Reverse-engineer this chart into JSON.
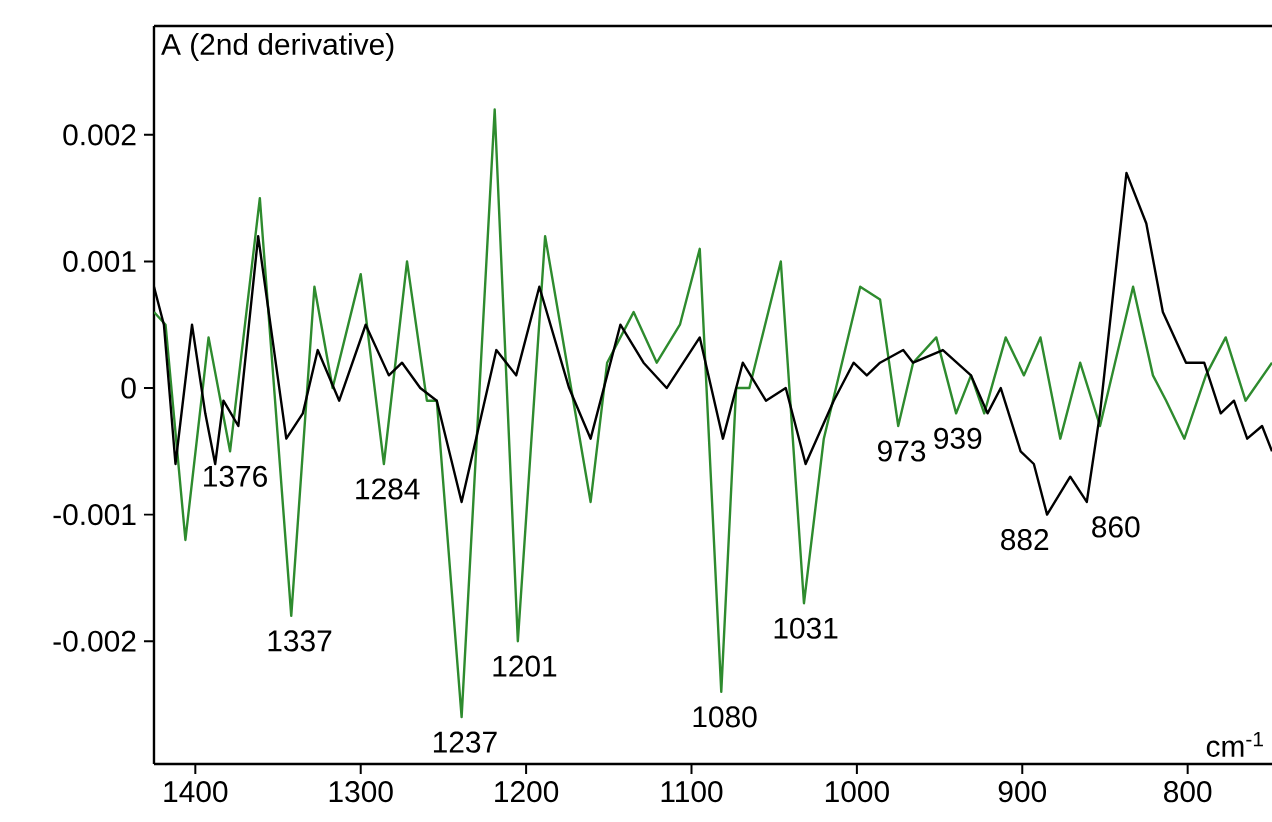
{
  "chart_data": {
    "type": "line",
    "title": "A (2nd derivative)",
    "xlabel": "cm$^{-1}$",
    "xlim": [
      1425,
      749
    ],
    "ylim": [
      -0.00297,
      0.00286
    ],
    "xticks": [
      1400,
      1300,
      1200,
      1100,
      1000,
      900,
      800
    ],
    "yticks": [
      0.002,
      0.001,
      0,
      -0.001,
      -0.002
    ],
    "grid": false,
    "marker": "none",
    "series": [
      {
        "color": "#2e8b2e",
        "x": [
          1425,
          1418,
          1406,
          1392,
          1379,
          1361,
          1342,
          1328,
          1317,
          1300,
          1286,
          1272,
          1260,
          1254,
          1239,
          1219,
          1205,
          1188.5,
          1161,
          1151,
          1135,
          1121,
          1107,
          1095,
          1082,
          1073,
          1065,
          1046,
          1032,
          1020,
          998,
          986,
          975,
          966,
          952,
          940,
          931,
          923,
          910,
          899,
          889,
          877,
          865,
          853,
          833,
          821,
          813,
          802,
          789,
          777,
          765,
          749
        ],
        "values": [
          0.0006,
          0.0005,
          -0.0012,
          0.0004,
          -0.0005,
          0.0015,
          -0.0018,
          0.0008,
          0,
          0.0009,
          -0.0006,
          0.001,
          -0.0001,
          -0.0001,
          -0.0026,
          0.0022,
          -0.002,
          0.0012,
          -0.0009,
          0.0002,
          0.0006,
          0.0002,
          0.0005,
          0.0011,
          -0.0024,
          0,
          0,
          0.001,
          -0.0017,
          -0.0004,
          0.0008,
          0.0007,
          -0.0003,
          0.0002,
          0.0004,
          -0.0002,
          0.0001,
          -0.0002,
          0.0004,
          0.0001,
          0.0004,
          -0.0004,
          0.0002,
          -0.0003,
          0.0008,
          0.0001,
          -0.0001,
          -0.0004,
          0.0001,
          0.0004,
          -0.0001,
          0.0002
        ]
      },
      {
        "color": "#000000",
        "x": [
          1425,
          1419,
          1412,
          1402,
          1394,
          1388,
          1383,
          1374,
          1362,
          1345,
          1335,
          1326,
          1313,
          1297,
          1283,
          1275,
          1264,
          1254,
          1239,
          1218,
          1206,
          1192,
          1174,
          1161,
          1143,
          1129,
          1115,
          1095,
          1081,
          1069,
          1055,
          1043,
          1031,
          1014,
          1002,
          994,
          986,
          972,
          966,
          948,
          931,
          921,
          913,
          901,
          893,
          885,
          871,
          861,
          853,
          837,
          825,
          815,
          801,
          790,
          780,
          772,
          764,
          755,
          749
        ],
        "values": [
          0.0008,
          0.0005,
          -0.0006,
          0.0005,
          -0.0002,
          -0.0006,
          -0.0001,
          -0.0003,
          0.0012,
          -0.0004,
          -0.0002,
          0.0003,
          -0.0001,
          0.0005,
          0.0001,
          0.0002,
          0,
          -0.0001,
          -0.0009,
          0.0003,
          0.0001,
          0.0008,
          0,
          -0.0004,
          0.0005,
          0.0002,
          0,
          0.0004,
          -0.0004,
          0.0002,
          -0.0001,
          0,
          -0.0006,
          -0.0001,
          0.0002,
          0.0001,
          0.0002,
          0.0003,
          0.0002,
          0.0003,
          0.0001,
          -0.0002,
          0,
          -0.0005,
          -0.0006,
          -0.001,
          -0.0007,
          -0.0009,
          -0.0002,
          0.0017,
          0.0013,
          0.0006,
          0.0002,
          0.0002,
          -0.0002,
          -0.0001,
          -0.0004,
          -0.0003,
          -0.0005
        ]
      }
    ],
    "annotations": [
      {
        "text": "1376",
        "x": 1376,
        "y": -0.0005
      },
      {
        "text": "1337",
        "x": 1337,
        "y": -0.0018
      },
      {
        "text": "1284",
        "x": 1284,
        "y": -0.0006
      },
      {
        "text": "1237",
        "x": 1237,
        "y": -0.0026
      },
      {
        "text": "1201",
        "x": 1201,
        "y": -0.002
      },
      {
        "text": "1080",
        "x": 1080,
        "y": -0.0024
      },
      {
        "text": "1031",
        "x": 1031,
        "y": -0.0017
      },
      {
        "text": "973",
        "x": 973,
        "y": -0.0003
      },
      {
        "text": "939",
        "x": 939,
        "y": -0.0002
      },
      {
        "text": "882",
        "x": 882,
        "y": -0.001
      },
      {
        "text": "860",
        "x": 860,
        "y": -0.0009
      }
    ]
  }
}
